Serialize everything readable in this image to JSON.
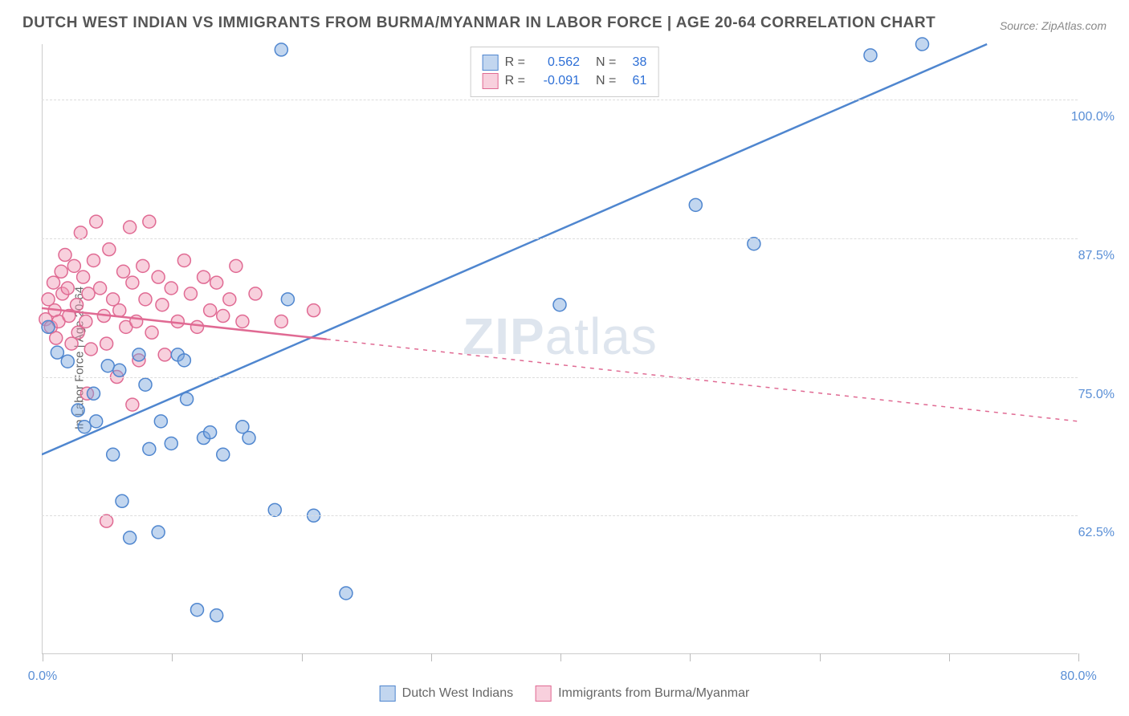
{
  "title": "DUTCH WEST INDIAN VS IMMIGRANTS FROM BURMA/MYANMAR IN LABOR FORCE | AGE 20-64 CORRELATION CHART",
  "source": "Source: ZipAtlas.com",
  "y_axis_label": "In Labor Force | Age 20-64",
  "watermark_bold": "ZIP",
  "watermark_light": "atlas",
  "chart": {
    "type": "scatter-with-regression",
    "xlim": [
      0,
      80
    ],
    "ylim": [
      50,
      105
    ],
    "x_tick_labels": {
      "0": "0.0%",
      "80": "80.0%"
    },
    "x_tick_positions": [
      0,
      10,
      20,
      30,
      40,
      50,
      60,
      70,
      80
    ],
    "y_gridlines": [
      62.5,
      75.0,
      87.5,
      100.0
    ],
    "y_tick_labels": [
      "62.5%",
      "75.0%",
      "87.5%",
      "100.0%"
    ],
    "background_color": "#ffffff",
    "grid_color": "#dddddd",
    "axis_color": "#cccccc",
    "tick_label_color": "#5a8fd6",
    "marker_radius": 8,
    "marker_opacity": 0.55,
    "line_width": 2.5,
    "series": [
      {
        "name": "Dutch West Indians",
        "color": "#6699d8",
        "fill": "rgba(120,165,220,0.45)",
        "stroke": "#4f86cf",
        "R": "0.562",
        "N": "38",
        "points": [
          [
            0.5,
            79.5
          ],
          [
            1.2,
            77.2
          ],
          [
            2.0,
            76.4
          ],
          [
            2.8,
            72.0
          ],
          [
            3.3,
            70.5
          ],
          [
            4.0,
            73.5
          ],
          [
            4.2,
            71.0
          ],
          [
            5.1,
            76.0
          ],
          [
            5.5,
            68.0
          ],
          [
            6.0,
            75.6
          ],
          [
            6.2,
            63.8
          ],
          [
            6.8,
            60.5
          ],
          [
            7.5,
            77.0
          ],
          [
            8.0,
            74.3
          ],
          [
            8.3,
            68.5
          ],
          [
            9.0,
            61.0
          ],
          [
            9.2,
            71.0
          ],
          [
            10.0,
            69.0
          ],
          [
            10.5,
            77.0
          ],
          [
            11.0,
            76.5
          ],
          [
            11.2,
            73.0
          ],
          [
            12.0,
            54.0
          ],
          [
            12.5,
            69.5
          ],
          [
            13.0,
            70.0
          ],
          [
            13.5,
            53.5
          ],
          [
            14.0,
            68.0
          ],
          [
            15.5,
            70.5
          ],
          [
            16.0,
            69.5
          ],
          [
            18.0,
            63.0
          ],
          [
            18.5,
            104.5
          ],
          [
            19.0,
            82.0
          ],
          [
            21.0,
            62.5
          ],
          [
            23.5,
            55.5
          ],
          [
            40.0,
            81.5
          ],
          [
            50.5,
            90.5
          ],
          [
            55.0,
            87.0
          ],
          [
            64.0,
            104.0
          ],
          [
            68.0,
            105.0
          ]
        ],
        "regression": {
          "x1": 0,
          "y1": 68.0,
          "x2": 73,
          "y2": 105.0
        }
      },
      {
        "name": "Immigrants from Burma/Myanmar",
        "color": "#e67ca0",
        "fill": "rgba(240,150,180,0.45)",
        "stroke": "#e06a93",
        "R": "-0.091",
        "N": "61",
        "points": [
          [
            0.3,
            80.2
          ],
          [
            0.5,
            82.0
          ],
          [
            0.7,
            79.5
          ],
          [
            0.9,
            83.5
          ],
          [
            1.0,
            81.0
          ],
          [
            1.1,
            78.5
          ],
          [
            1.3,
            80.0
          ],
          [
            1.5,
            84.5
          ],
          [
            1.6,
            82.5
          ],
          [
            1.8,
            86.0
          ],
          [
            2.0,
            83.0
          ],
          [
            2.1,
            80.5
          ],
          [
            2.3,
            78.0
          ],
          [
            2.5,
            85.0
          ],
          [
            2.7,
            81.5
          ],
          [
            2.8,
            79.0
          ],
          [
            3.0,
            88.0
          ],
          [
            3.2,
            84.0
          ],
          [
            3.4,
            80.0
          ],
          [
            3.6,
            82.5
          ],
          [
            3.8,
            77.5
          ],
          [
            4.0,
            85.5
          ],
          [
            4.2,
            89.0
          ],
          [
            4.5,
            83.0
          ],
          [
            4.8,
            80.5
          ],
          [
            5.0,
            78.0
          ],
          [
            5.2,
            86.5
          ],
          [
            5.5,
            82.0
          ],
          [
            5.8,
            75.0
          ],
          [
            6.0,
            81.0
          ],
          [
            6.3,
            84.5
          ],
          [
            6.5,
            79.5
          ],
          [
            6.8,
            88.5
          ],
          [
            7.0,
            83.5
          ],
          [
            7.3,
            80.0
          ],
          [
            7.5,
            76.5
          ],
          [
            7.8,
            85.0
          ],
          [
            8.0,
            82.0
          ],
          [
            8.3,
            89.0
          ],
          [
            8.5,
            79.0
          ],
          [
            9.0,
            84.0
          ],
          [
            9.3,
            81.5
          ],
          [
            9.5,
            77.0
          ],
          [
            10.0,
            83.0
          ],
          [
            10.5,
            80.0
          ],
          [
            11.0,
            85.5
          ],
          [
            11.5,
            82.5
          ],
          [
            12.0,
            79.5
          ],
          [
            12.5,
            84.0
          ],
          [
            13.0,
            81.0
          ],
          [
            13.5,
            83.5
          ],
          [
            14.0,
            80.5
          ],
          [
            14.5,
            82.0
          ],
          [
            15.0,
            85.0
          ],
          [
            15.5,
            80.0
          ],
          [
            16.5,
            82.5
          ],
          [
            3.5,
            73.5
          ],
          [
            5.0,
            62.0
          ],
          [
            18.5,
            80.0
          ],
          [
            21.0,
            81.0
          ],
          [
            7.0,
            72.5
          ]
        ],
        "regression": {
          "x1": 0,
          "y1": 81.2,
          "x2": 80,
          "y2": 71.0
        },
        "regression_dash_after_x": 22
      }
    ]
  },
  "stats_legend": {
    "rows": [
      {
        "swatch_fill": "rgba(120,165,220,0.45)",
        "swatch_border": "#4f86cf",
        "r_label": "R =",
        "r_val": "0.562",
        "r_color": "#2d6fd6",
        "n_label": "N =",
        "n_val": "38",
        "n_color": "#2d6fd6"
      },
      {
        "swatch_fill": "rgba(240,150,180,0.45)",
        "swatch_border": "#e06a93",
        "r_label": "R =",
        "r_val": "-0.091",
        "r_color": "#2d6fd6",
        "n_label": "N =",
        "n_val": "61",
        "n_color": "#2d6fd6"
      }
    ]
  },
  "bottom_legend": {
    "items": [
      {
        "swatch_fill": "rgba(120,165,220,0.45)",
        "swatch_border": "#4f86cf",
        "label": "Dutch West Indians"
      },
      {
        "swatch_fill": "rgba(240,150,180,0.45)",
        "swatch_border": "#e06a93",
        "label": "Immigrants from Burma/Myanmar"
      }
    ]
  }
}
